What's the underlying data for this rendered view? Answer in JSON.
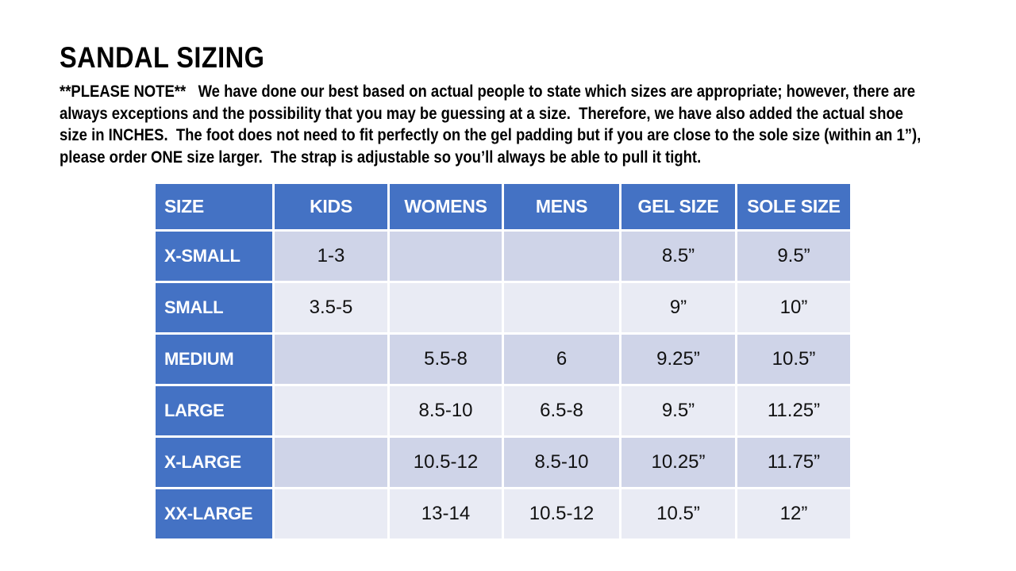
{
  "header": {
    "title": "SANDAL SIZING",
    "note_lines": [
      "**PLEASE NOTE**   We have done our best based on actual people to state which sizes are appropriate; however, there are",
      "always exceptions and the possibility that you may be guessing at a size.  Therefore, we have also added the actual shoe",
      "size in INCHES.  The foot does not need to fit perfectly on the gel padding but if you are close to the sole size (within an 1”),",
      "please order ONE size larger.  The strap is adjustable so you’ll always be able to pull it tight."
    ]
  },
  "table": {
    "columns": [
      "SIZE",
      "KIDS",
      "WOMENS",
      "MENS",
      "GEL SIZE",
      "SOLE SIZE"
    ],
    "rows": [
      [
        "X-SMALL",
        "1-3",
        "",
        "",
        "8.5”",
        "9.5”"
      ],
      [
        "SMALL",
        "3.5-5",
        "",
        "",
        "9”",
        "10”"
      ],
      [
        "MEDIUM",
        "",
        "5.5-8",
        "6",
        "9.25”",
        "10.5”"
      ],
      [
        "LARGE",
        "",
        "8.5-10",
        "6.5-8",
        "9.5”",
        "11.25”"
      ],
      [
        "X-LARGE",
        "",
        "10.5-12",
        "8.5-10",
        "10.25”",
        "11.75”"
      ],
      [
        "XX-LARGE",
        "",
        "13-14",
        "10.5-12",
        "10.5”",
        "12”"
      ]
    ]
  },
  "colors": {
    "header_blue": "#4472C4",
    "band_dark": "#CFD4E8",
    "band_light": "#E9EBF4",
    "gridline_white": "#FFFFFF",
    "header_text": "#FFFFFF",
    "body_text": "#000000"
  }
}
